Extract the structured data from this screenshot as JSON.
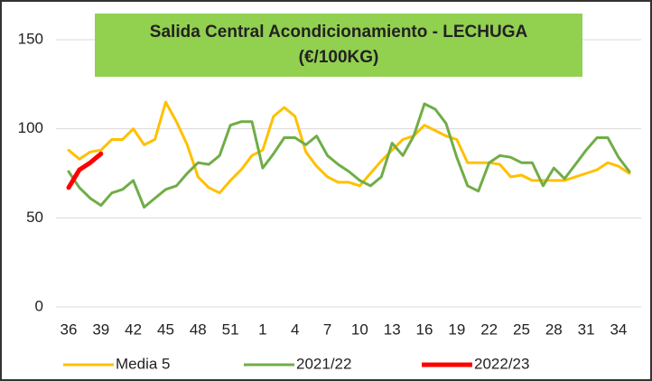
{
  "chart_data": {
    "type": "line",
    "title_lines": [
      "Salida Central Acondicionamiento - LECHUGA",
      "(€/100KG)"
    ],
    "categories": [
      "36",
      null,
      null,
      "39",
      null,
      null,
      "42",
      null,
      null,
      "45",
      null,
      null,
      "48",
      null,
      null,
      "51",
      null,
      null,
      "1",
      null,
      null,
      "4",
      null,
      null,
      "7",
      null,
      null,
      "10",
      null,
      null,
      "13",
      null,
      null,
      "16",
      null,
      null,
      "19",
      null,
      null,
      "22",
      null,
      null,
      "25",
      null,
      null,
      "28",
      null,
      null,
      "31",
      null,
      null,
      "34",
      null
    ],
    "series": [
      {
        "name": "Media 5",
        "color": "#ffc000",
        "width": 3,
        "values": [
          88,
          83,
          87,
          88,
          94,
          94,
          100,
          91,
          94,
          115,
          104,
          91,
          73,
          67,
          64,
          71,
          77,
          85,
          88,
          107,
          112,
          107,
          87,
          79,
          73,
          70,
          70,
          68,
          75,
          82,
          88,
          94,
          96,
          102,
          99,
          96,
          94,
          81,
          81,
          81,
          80,
          73,
          74,
          71,
          71,
          71,
          71,
          73,
          75,
          77,
          81,
          79,
          75
        ]
      },
      {
        "name": "2021/22",
        "color": "#70ad47",
        "width": 3,
        "values": [
          76,
          67,
          61,
          57,
          64,
          66,
          71,
          56,
          61,
          66,
          68,
          75,
          81,
          80,
          85,
          102,
          104,
          104,
          78,
          86,
          95,
          95,
          91,
          96,
          85,
          80,
          76,
          71,
          68,
          73,
          92,
          85,
          96,
          114,
          111,
          103,
          84,
          68,
          65,
          81,
          85,
          84,
          81,
          81,
          68,
          78,
          72,
          80,
          88,
          95,
          95,
          84,
          76
        ]
      },
      {
        "name": "2022/23",
        "color": "#ff0000",
        "width": 5,
        "values": [
          67,
          77,
          81,
          86,
          null,
          null,
          null,
          null,
          null,
          null,
          null,
          null,
          null,
          null,
          null,
          null,
          null,
          null,
          null,
          null,
          null,
          null,
          null,
          null,
          null,
          null,
          null,
          null,
          null,
          null,
          null,
          null,
          null,
          null,
          null,
          null,
          null,
          null,
          null,
          null,
          null,
          null,
          null,
          null,
          null,
          null,
          null,
          null,
          null,
          null,
          null,
          null,
          null
        ]
      }
    ],
    "ylim": [
      0,
      150
    ],
    "yticks": [
      0,
      50,
      100,
      150
    ],
    "grid": true,
    "legend": "bottom",
    "title_background": "#92d050"
  }
}
